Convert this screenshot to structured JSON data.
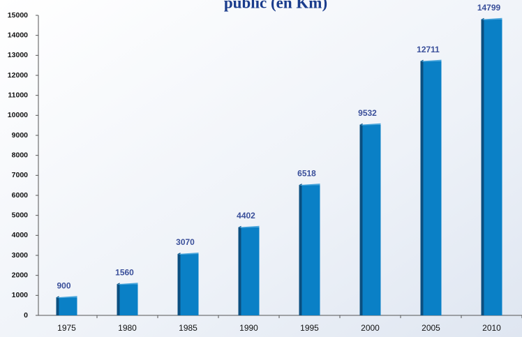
{
  "chart_data": {
    "type": "bar",
    "title": "public (en Km)",
    "categories": [
      "1975",
      "1980",
      "1985",
      "1990",
      "1995",
      "2000",
      "2005",
      "2010"
    ],
    "values": [
      900,
      1560,
      3070,
      4402,
      6518,
      9532,
      12711,
      14799
    ],
    "color": "#0a80c6",
    "ylim": [
      0,
      15000
    ],
    "yticks": [
      0,
      1000,
      2000,
      3000,
      4000,
      5000,
      6000,
      7000,
      8000,
      9000,
      10000,
      11000,
      12000,
      13000,
      14000,
      15000
    ],
    "grid": false
  }
}
